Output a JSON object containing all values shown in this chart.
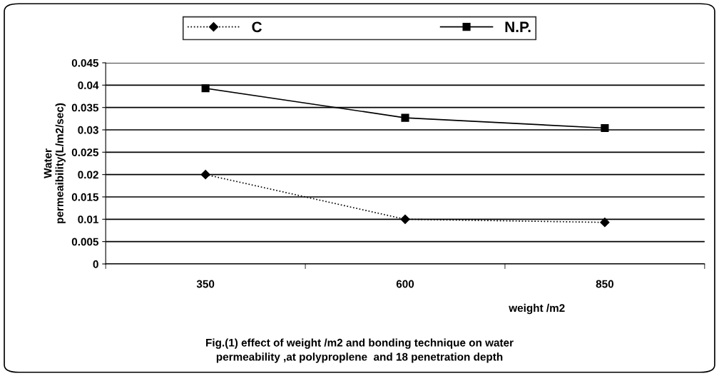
{
  "chart_data": {
    "type": "line",
    "categories": [
      "350",
      "600",
      "850"
    ],
    "series": [
      {
        "name": "C",
        "color": "#000000",
        "values": [
          0.02,
          0.01,
          0.0093
        ],
        "marker": "diamond",
        "line_style": "dotted"
      },
      {
        "name": "N.P.",
        "color": "#000000",
        "values": [
          0.0393,
          0.0327,
          0.0304
        ],
        "marker": "square",
        "line_style": "solid"
      }
    ],
    "xlabel": "weight /m2",
    "ylabel": "Water\npermeaibility(L/m2/sec)",
    "ylim": [
      0,
      0.045
    ],
    "yticks": [
      0,
      0.005,
      0.01,
      0.015,
      0.02,
      0.025,
      0.03,
      0.035,
      0.04,
      0.045
    ],
    "grid": "y",
    "legend": "top",
    "annotations": [
      "Fig.(1) effect of weight /m2 and bonding technique on water\npermeability ,at polyproplene  and 18 penetration depth"
    ]
  }
}
